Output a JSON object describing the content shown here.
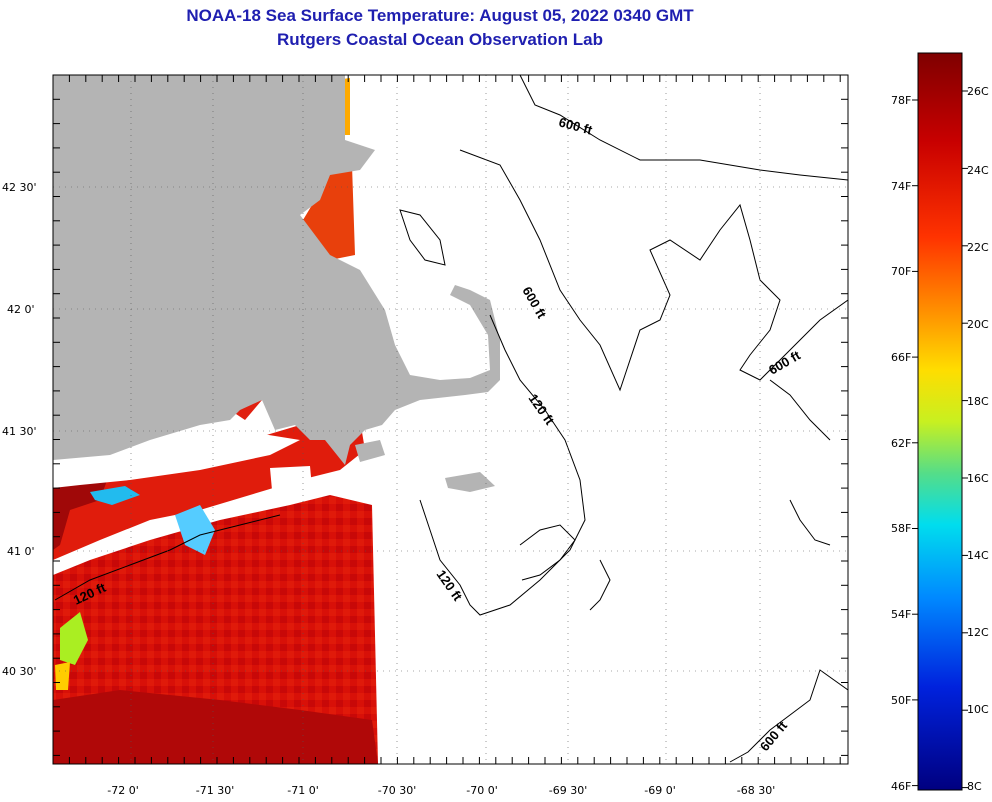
{
  "title_line1": "NOAA-18 Sea Surface Temperature:  August 05, 2022 0340 GMT",
  "title_line2": "Rutgers Coastal Ocean Observation Lab",
  "lon_ticks": [
    "-72 0'",
    "-71 30'",
    "-71 0'",
    "-70 30'",
    "-70 0'",
    "-69 30'",
    "-69 0'",
    "-68 30'"
  ],
  "lat_ticks": [
    "42 30'",
    "42 0'",
    "41 30'",
    "41 0'",
    "40 30'"
  ],
  "contour_labels": [
    "600 ft",
    "600 ft",
    "600 ft",
    "120 ft",
    "120 ft",
    "120 ft",
    "600 ft"
  ],
  "colorbar": {
    "fahrenheit_labels": [
      "78F",
      "74F",
      "70F",
      "66F",
      "62F",
      "58F",
      "54F",
      "50F",
      "46F"
    ],
    "celsius_labels": [
      "26C",
      "24C",
      "22C",
      "20C",
      "18C",
      "16C",
      "14C",
      "12C",
      "10C",
      "8C"
    ],
    "colors": [
      "#7f0000",
      "#cc0000",
      "#ff3300",
      "#ff8800",
      "#ffcc00",
      "#ffff33",
      "#99ee44",
      "#33dd99",
      "#00ccff",
      "#0088ff",
      "#0033dd",
      "#00008b"
    ]
  },
  "land_color": "#b4b4b4"
}
